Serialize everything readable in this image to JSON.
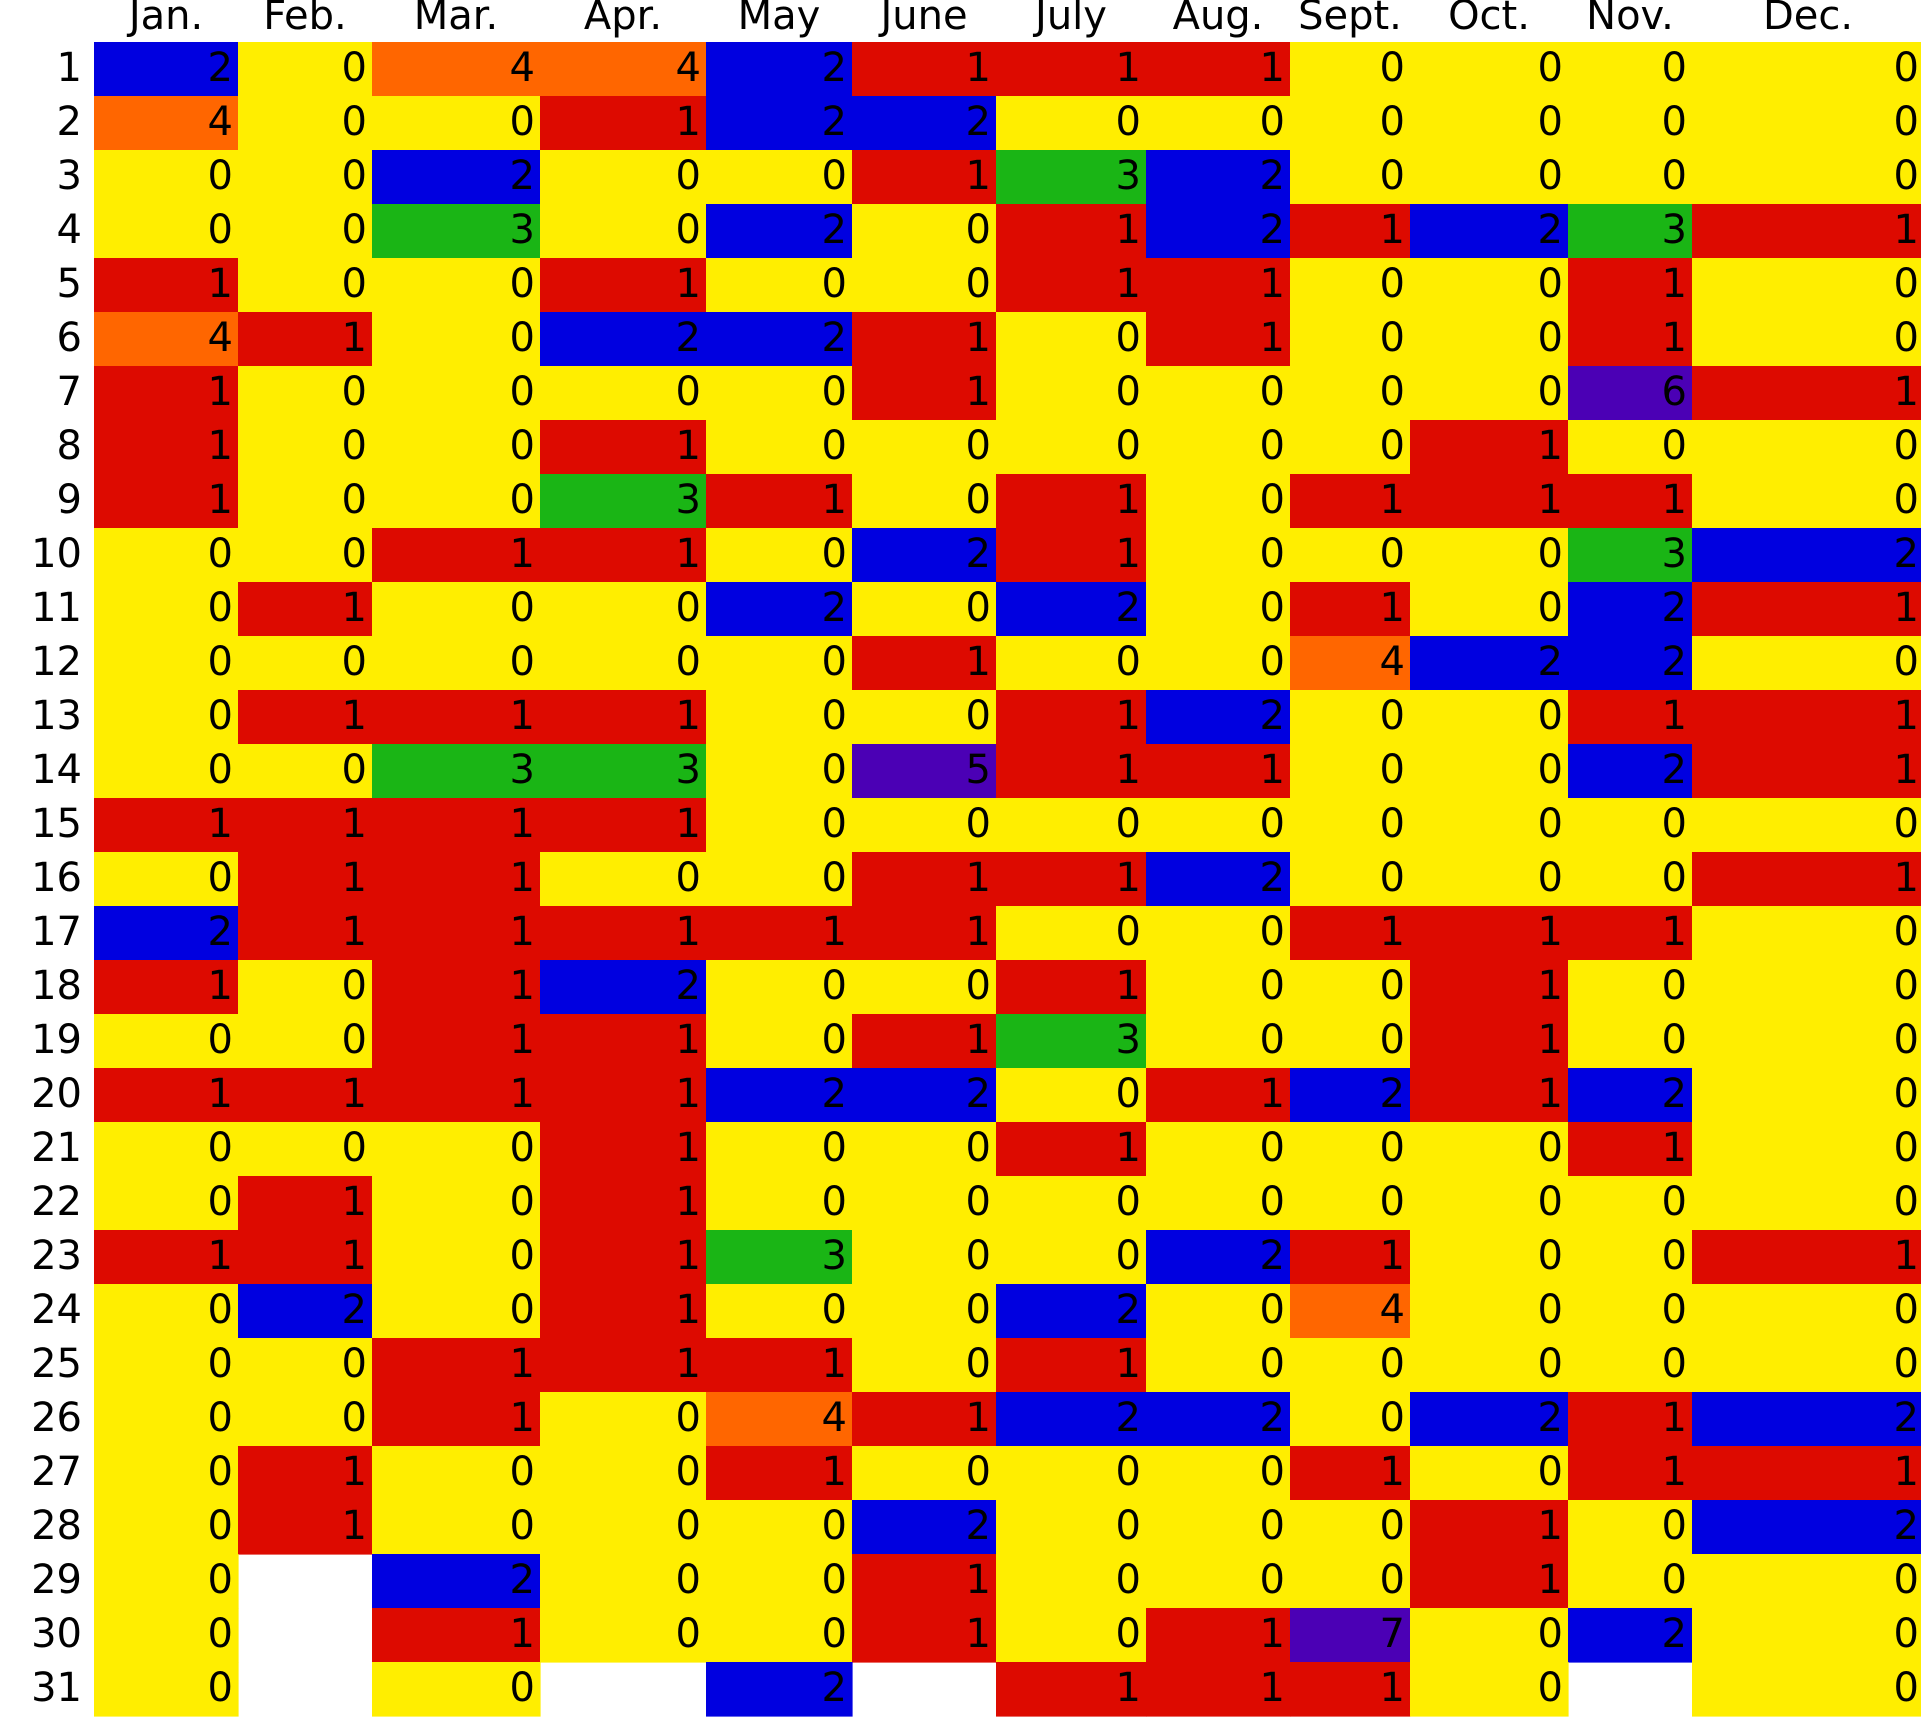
{
  "chart_data": {
    "type": "heatmap",
    "title": "",
    "xlabel": "",
    "ylabel": "",
    "columns": [
      "Jan.",
      "Feb.",
      "Mar.",
      "Apr.",
      "May",
      "June",
      "July",
      "Aug.",
      "Sept.",
      "Oct.",
      "Nov.",
      "Dec."
    ],
    "rows": [
      "1",
      "2",
      "3",
      "4",
      "5",
      "6",
      "7",
      "8",
      "9",
      "10",
      "11",
      "12",
      "13",
      "14",
      "15",
      "16",
      "17",
      "18",
      "19",
      "20",
      "21",
      "22",
      "23",
      "24",
      "25",
      "26",
      "27",
      "28",
      "29",
      "30",
      "31"
    ],
    "days_in_month": [
      31,
      28,
      31,
      30,
      31,
      30,
      31,
      31,
      30,
      31,
      30,
      31
    ],
    "values": [
      [
        2,
        0,
        4,
        4,
        2,
        1,
        1,
        1,
        0,
        0,
        0,
        0
      ],
      [
        4,
        0,
        0,
        1,
        2,
        2,
        0,
        0,
        0,
        0,
        0,
        0
      ],
      [
        0,
        0,
        2,
        0,
        0,
        1,
        3,
        2,
        0,
        0,
        0,
        0
      ],
      [
        0,
        0,
        3,
        0,
        2,
        0,
        1,
        2,
        1,
        2,
        3,
        1
      ],
      [
        1,
        0,
        0,
        1,
        0,
        0,
        1,
        1,
        0,
        0,
        1,
        0
      ],
      [
        4,
        1,
        0,
        2,
        2,
        1,
        0,
        1,
        0,
        0,
        1,
        0
      ],
      [
        1,
        0,
        0,
        0,
        0,
        1,
        0,
        0,
        0,
        0,
        6,
        1
      ],
      [
        1,
        0,
        0,
        1,
        0,
        0,
        0,
        0,
        0,
        1,
        0,
        0
      ],
      [
        1,
        0,
        0,
        3,
        1,
        0,
        1,
        0,
        1,
        1,
        1,
        0
      ],
      [
        0,
        0,
        1,
        1,
        0,
        2,
        1,
        0,
        0,
        0,
        3,
        2
      ],
      [
        0,
        1,
        0,
        0,
        2,
        0,
        2,
        0,
        1,
        0,
        2,
        1
      ],
      [
        0,
        0,
        0,
        0,
        0,
        1,
        0,
        0,
        4,
        2,
        2,
        0
      ],
      [
        0,
        1,
        1,
        1,
        0,
        0,
        1,
        2,
        0,
        0,
        1,
        1
      ],
      [
        0,
        0,
        3,
        3,
        0,
        5,
        1,
        1,
        0,
        0,
        2,
        1
      ],
      [
        1,
        1,
        1,
        1,
        0,
        0,
        0,
        0,
        0,
        0,
        0,
        0
      ],
      [
        0,
        1,
        1,
        0,
        0,
        1,
        1,
        2,
        0,
        0,
        0,
        1
      ],
      [
        2,
        1,
        1,
        1,
        1,
        1,
        0,
        0,
        1,
        1,
        1,
        0
      ],
      [
        1,
        0,
        1,
        2,
        0,
        0,
        1,
        0,
        0,
        1,
        0,
        0
      ],
      [
        0,
        0,
        1,
        1,
        0,
        1,
        3,
        0,
        0,
        1,
        0,
        0
      ],
      [
        1,
        1,
        1,
        1,
        2,
        2,
        0,
        1,
        2,
        1,
        2,
        0
      ],
      [
        0,
        0,
        0,
        1,
        0,
        0,
        1,
        0,
        0,
        0,
        1,
        0
      ],
      [
        0,
        1,
        0,
        1,
        0,
        0,
        0,
        0,
        0,
        0,
        0,
        0
      ],
      [
        1,
        1,
        0,
        1,
        3,
        0,
        0,
        2,
        1,
        0,
        0,
        1
      ],
      [
        0,
        2,
        0,
        1,
        0,
        0,
        2,
        0,
        4,
        0,
        0,
        0
      ],
      [
        0,
        0,
        1,
        1,
        1,
        0,
        1,
        0,
        0,
        0,
        0,
        0
      ],
      [
        0,
        0,
        1,
        0,
        4,
        1,
        2,
        2,
        0,
        2,
        1,
        2
      ],
      [
        0,
        1,
        0,
        0,
        1,
        0,
        0,
        0,
        1,
        0,
        1,
        1
      ],
      [
        0,
        1,
        0,
        0,
        0,
        2,
        0,
        0,
        0,
        1,
        0,
        2
      ],
      [
        0,
        null,
        2,
        0,
        0,
        1,
        0,
        0,
        0,
        1,
        0,
        0
      ],
      [
        0,
        null,
        1,
        0,
        0,
        1,
        0,
        1,
        7,
        0,
        2,
        0
      ],
      [
        0,
        null,
        0,
        null,
        2,
        null,
        1,
        1,
        1,
        0,
        null,
        0
      ]
    ],
    "color_scale": {
      "0": "#ffee00",
      "1": "#dd0a00",
      "2": "#0000e0",
      "3": "#1ab515",
      "4": "#ff6600",
      "5": "#4b00b5",
      "6": "#4b00b5",
      "7": "#4b00b5"
    },
    "missing_color": "#ffffff",
    "legend": false,
    "grid": false
  }
}
